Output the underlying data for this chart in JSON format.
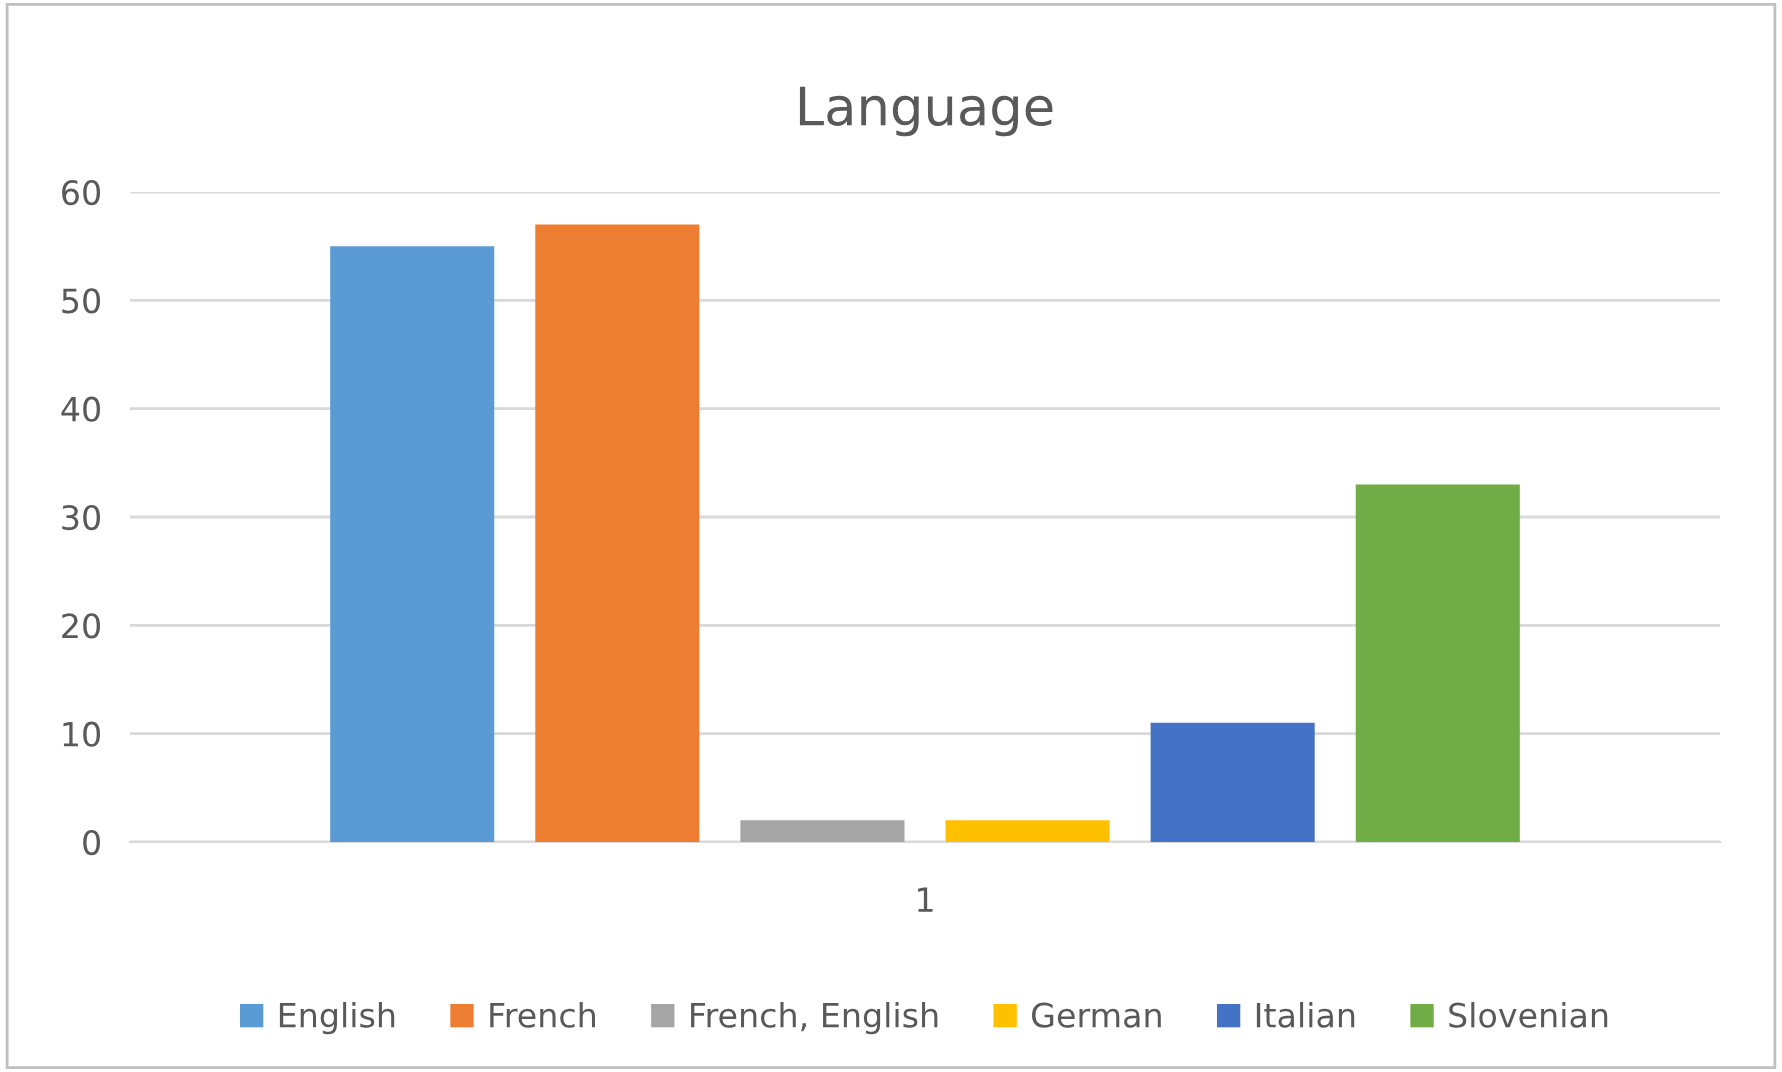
{
  "chart_data": {
    "type": "bar",
    "title": "Language",
    "categories": [
      "1"
    ],
    "series": [
      {
        "name": "English",
        "color": "#5b9bd5",
        "values": [
          55
        ]
      },
      {
        "name": "French",
        "color": "#ed7d31",
        "values": [
          57
        ]
      },
      {
        "name": "French, English",
        "color": "#a5a5a5",
        "values": [
          2
        ]
      },
      {
        "name": "German",
        "color": "#ffc000",
        "values": [
          2
        ]
      },
      {
        "name": "Italian",
        "color": "#4472c4",
        "values": [
          11
        ]
      },
      {
        "name": "Slovenian",
        "color": "#70ad47",
        "values": [
          33
        ]
      }
    ],
    "ylim": [
      0,
      60
    ],
    "yticks": [
      0,
      10,
      20,
      30,
      40,
      50,
      60
    ],
    "grid": "y",
    "legend": "bottom"
  }
}
